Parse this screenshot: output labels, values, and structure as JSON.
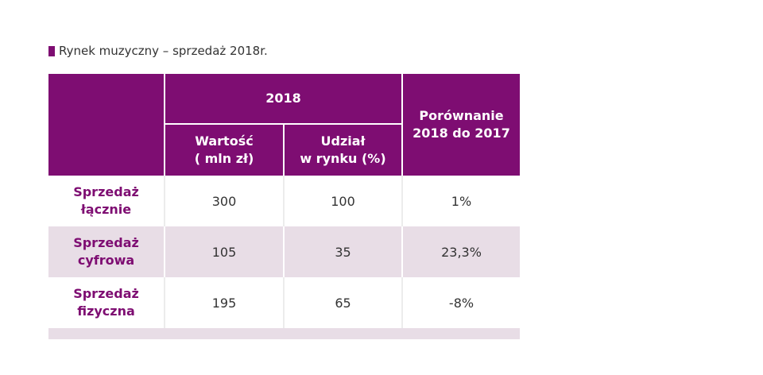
{
  "caption": {
    "text": "Rynek muzyczny – sprzedaż 2018r."
  },
  "table": {
    "header": {
      "group_year": "2018",
      "col_value_line1": "Wartość",
      "col_value_line2": "( mln zł)",
      "col_share_line1": "Udział",
      "col_share_line2": "w rynku (%)",
      "col_compare_line1": "Porównanie",
      "col_compare_line2": "2018 do 2017"
    },
    "rows": [
      {
        "label_line1": "Sprzedaż",
        "label_line2": "łącznie",
        "value": "300",
        "share": "100",
        "compare": "1%"
      },
      {
        "label_line1": "Sprzedaż",
        "label_line2": "cyfrowa",
        "value": "105",
        "share": "35",
        "compare": "23,3%"
      },
      {
        "label_line1": "Sprzedaż",
        "label_line2": "fizyczna",
        "value": "195",
        "share": "65",
        "compare": "-8%"
      }
    ]
  },
  "colors": {
    "accent": "#7e0d72",
    "row_tint": "#e8dde6",
    "text": "#333333"
  }
}
